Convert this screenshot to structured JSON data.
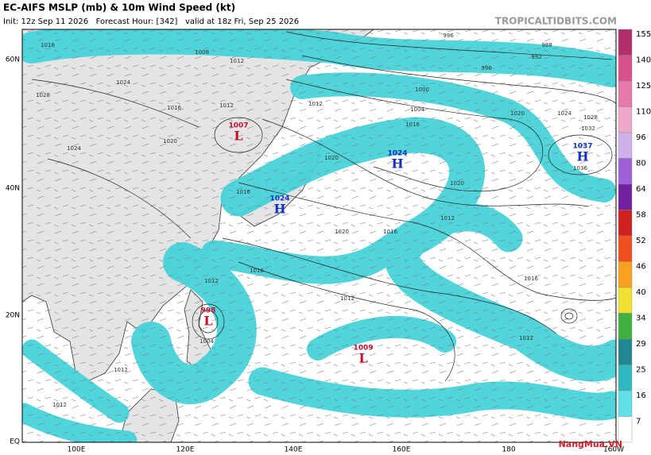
{
  "header": {
    "title": "EC-AIFS MSLP (mb) & 10m Wind Speed (kt)",
    "subtitle": "Init: 12z Sep 11 2026   Forecast Hour: [342]   valid at 18z Fri, Sep 25 2026",
    "site": "TROPICALTIDBITS.COM"
  },
  "map": {
    "lat_labels": [
      "60N",
      "40N",
      "20N",
      "EQ"
    ],
    "lon_labels": [
      "100E",
      "120E",
      "140E",
      "160E",
      "180",
      "160W"
    ],
    "centers": [
      {
        "value": "1007",
        "type": "L"
      },
      {
        "value": "1024",
        "type": "H"
      },
      {
        "value": "1024",
        "type": "H"
      },
      {
        "value": "1037",
        "type": "H"
      },
      {
        "value": "998",
        "type": "L"
      },
      {
        "value": "1009",
        "type": "L"
      }
    ],
    "isobar_labels": [
      "1016",
      "1008",
      "1012",
      "1024",
      "1028",
      "1016",
      "1012",
      "1020",
      "1024",
      "1016",
      "1012",
      "1016",
      "1020",
      "1020",
      "1012",
      "1016",
      "1020",
      "1016",
      "1012",
      "1012",
      "1016",
      "1012",
      "996",
      "988",
      "992",
      "996",
      "1000",
      "1004",
      "1020",
      "1024",
      "1028",
      "1032",
      "1036",
      "1004",
      "1012",
      "1012"
    ]
  },
  "legend": {
    "levels": [
      {
        "label": "155",
        "color": "#b0306a"
      },
      {
        "label": "140",
        "color": "#d8508c"
      },
      {
        "label": "125",
        "color": "#e678aa"
      },
      {
        "label": "110",
        "color": "#f0a8c8"
      },
      {
        "label": "96",
        "color": "#d0b0e8"
      },
      {
        "label": "80",
        "color": "#a060d8"
      },
      {
        "label": "64",
        "color": "#7020a0"
      },
      {
        "label": "58",
        "color": "#d02020"
      },
      {
        "label": "52",
        "color": "#f05020"
      },
      {
        "label": "46",
        "color": "#f8a020"
      },
      {
        "label": "40",
        "color": "#f0e030"
      },
      {
        "label": "34",
        "color": "#40b040"
      },
      {
        "label": "29",
        "color": "#208890"
      },
      {
        "label": "25",
        "color": "#30b8c0"
      },
      {
        "label": "16",
        "color": "#60e0e8"
      },
      {
        "label": "7",
        "color": "#ffffff"
      }
    ]
  },
  "watermark": "NangMua.VN"
}
